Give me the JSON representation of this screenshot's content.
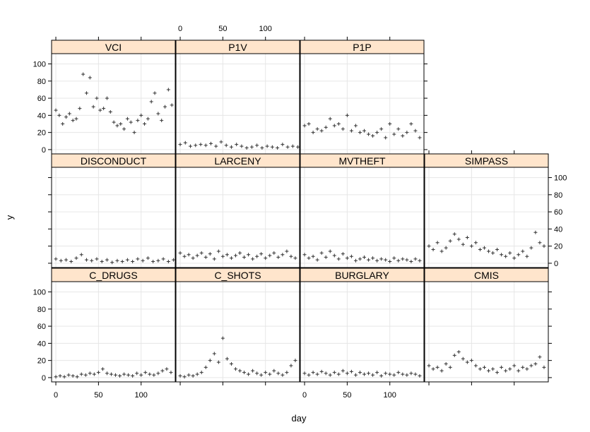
{
  "chart_data": {
    "type": "scatter",
    "layout": "lattice 4 columns x 3 rows",
    "xlabel": "day",
    "ylabel": "y",
    "xlim": [
      -5,
      140
    ],
    "ylim": [
      -5,
      112
    ],
    "x_ticks": [
      0,
      50,
      100
    ],
    "y_ticks": [
      0,
      20,
      40,
      60,
      80,
      100
    ],
    "colors": {
      "strip_fill": "#FFE5CC",
      "point": "#333333",
      "grid": "#E6E6E6",
      "border": "#000000"
    },
    "panels": [
      {
        "name": "VCI",
        "row": 1,
        "col": 1,
        "x": [
          0,
          4,
          8,
          12,
          16,
          20,
          24,
          28,
          32,
          36,
          40,
          44,
          48,
          52,
          56,
          60,
          64,
          68,
          72,
          76,
          80,
          84,
          88,
          92,
          96,
          100,
          104,
          108,
          112,
          116,
          120,
          124,
          128,
          132,
          136
        ],
        "y": [
          46,
          40,
          30,
          38,
          42,
          34,
          36,
          48,
          88,
          66,
          84,
          50,
          60,
          46,
          48,
          60,
          44,
          32,
          28,
          30,
          24,
          36,
          32,
          20,
          34,
          40,
          30,
          36,
          56,
          66,
          42,
          34,
          50,
          70,
          52
        ]
      },
      {
        "name": "P1V",
        "row": 1,
        "col": 2,
        "x": [
          0,
          6,
          12,
          18,
          24,
          30,
          36,
          42,
          48,
          54,
          60,
          66,
          72,
          78,
          84,
          90,
          96,
          102,
          108,
          114,
          120,
          126,
          132,
          138
        ],
        "y": [
          6,
          8,
          4,
          5,
          6,
          5,
          7,
          4,
          9,
          5,
          3,
          6,
          4,
          2,
          3,
          5,
          2,
          4,
          3,
          2,
          6,
          3,
          4,
          3
        ]
      },
      {
        "name": "P1P",
        "row": 1,
        "col": 3,
        "x": [
          0,
          5,
          10,
          15,
          20,
          25,
          30,
          35,
          40,
          45,
          50,
          55,
          60,
          65,
          70,
          75,
          80,
          85,
          90,
          95,
          100,
          105,
          110,
          115,
          120,
          125,
          130,
          135
        ],
        "y": [
          28,
          30,
          20,
          24,
          22,
          26,
          36,
          28,
          30,
          24,
          40,
          22,
          28,
          20,
          22,
          18,
          16,
          20,
          24,
          14,
          30,
          18,
          24,
          16,
          20,
          30,
          22,
          14
        ]
      },
      {
        "name": "DISCONDUCT",
        "row": 2,
        "col": 1,
        "x": [
          0,
          6,
          12,
          18,
          24,
          30,
          36,
          42,
          48,
          54,
          60,
          66,
          72,
          78,
          84,
          90,
          96,
          102,
          108,
          114,
          120,
          126,
          132,
          138
        ],
        "y": [
          5,
          3,
          4,
          2,
          6,
          10,
          4,
          3,
          5,
          2,
          4,
          1,
          3,
          2,
          4,
          2,
          5,
          3,
          6,
          2,
          3,
          5,
          2,
          4
        ]
      },
      {
        "name": "LARCENY",
        "row": 2,
        "col": 2,
        "x": [
          0,
          5,
          10,
          15,
          20,
          25,
          30,
          35,
          40,
          45,
          50,
          55,
          60,
          65,
          70,
          75,
          80,
          85,
          90,
          95,
          100,
          105,
          110,
          115,
          120,
          125,
          130,
          135
        ],
        "y": [
          12,
          8,
          10,
          6,
          9,
          12,
          7,
          11,
          5,
          14,
          8,
          10,
          6,
          9,
          12,
          7,
          10,
          5,
          8,
          11,
          6,
          9,
          12,
          7,
          10,
          14,
          8,
          6
        ]
      },
      {
        "name": "MVTHEFT",
        "row": 2,
        "col": 3,
        "x": [
          0,
          5,
          10,
          15,
          20,
          25,
          30,
          35,
          40,
          45,
          50,
          55,
          60,
          65,
          70,
          75,
          80,
          85,
          90,
          95,
          100,
          105,
          110,
          115,
          120,
          125,
          130,
          135
        ],
        "y": [
          10,
          6,
          8,
          4,
          12,
          7,
          14,
          9,
          5,
          11,
          6,
          8,
          3,
          5,
          7,
          4,
          6,
          3,
          5,
          4,
          2,
          6,
          3,
          5,
          4,
          2,
          5,
          3
        ]
      },
      {
        "name": "SIMPASS",
        "row": 2,
        "col": 4,
        "x": [
          0,
          5,
          10,
          15,
          20,
          25,
          30,
          35,
          40,
          45,
          50,
          55,
          60,
          65,
          70,
          75,
          80,
          85,
          90,
          95,
          100,
          105,
          110,
          115,
          120,
          125,
          130,
          135
        ],
        "y": [
          20,
          16,
          24,
          14,
          18,
          26,
          34,
          28,
          22,
          30,
          20,
          24,
          16,
          18,
          14,
          12,
          16,
          10,
          8,
          12,
          6,
          10,
          14,
          8,
          18,
          36,
          24,
          20
        ]
      },
      {
        "name": "C_DRUGS",
        "row": 3,
        "col": 1,
        "x": [
          0,
          5,
          10,
          15,
          20,
          25,
          30,
          35,
          40,
          45,
          50,
          55,
          60,
          65,
          70,
          75,
          80,
          85,
          90,
          95,
          100,
          105,
          110,
          115,
          120,
          125,
          130,
          135
        ],
        "y": [
          1,
          2,
          1,
          3,
          2,
          1,
          4,
          3,
          5,
          4,
          6,
          10,
          5,
          4,
          3,
          2,
          4,
          3,
          2,
          5,
          3,
          6,
          4,
          3,
          5,
          8,
          10,
          6
        ]
      },
      {
        "name": "C_SHOTS",
        "row": 3,
        "col": 2,
        "x": [
          0,
          5,
          10,
          15,
          20,
          25,
          30,
          35,
          40,
          45,
          50,
          55,
          60,
          65,
          70,
          75,
          80,
          85,
          90,
          95,
          100,
          105,
          110,
          115,
          120,
          125,
          130,
          135
        ],
        "y": [
          2,
          1,
          3,
          2,
          4,
          6,
          12,
          20,
          28,
          18,
          46,
          22,
          16,
          10,
          8,
          6,
          4,
          8,
          5,
          3,
          6,
          4,
          8,
          5,
          3,
          6,
          14,
          20
        ]
      },
      {
        "name": "BURGLARY",
        "row": 3,
        "col": 3,
        "x": [
          0,
          5,
          10,
          15,
          20,
          25,
          30,
          35,
          40,
          45,
          50,
          55,
          60,
          65,
          70,
          75,
          80,
          85,
          90,
          95,
          100,
          105,
          110,
          115,
          120,
          125,
          130,
          135
        ],
        "y": [
          5,
          3,
          6,
          4,
          7,
          5,
          3,
          6,
          4,
          8,
          5,
          7,
          3,
          6,
          4,
          5,
          3,
          6,
          2,
          5,
          4,
          3,
          6,
          4,
          3,
          5,
          4,
          2
        ]
      },
      {
        "name": "CMIS",
        "row": 3,
        "col": 4,
        "x": [
          0,
          5,
          10,
          15,
          20,
          25,
          30,
          35,
          40,
          45,
          50,
          55,
          60,
          65,
          70,
          75,
          80,
          85,
          90,
          95,
          100,
          105,
          110,
          115,
          120,
          125,
          130,
          135
        ],
        "y": [
          14,
          10,
          12,
          8,
          16,
          12,
          26,
          30,
          22,
          18,
          20,
          14,
          10,
          12,
          8,
          10,
          6,
          12,
          8,
          10,
          14,
          8,
          12,
          10,
          14,
          16,
          24,
          12
        ]
      }
    ]
  }
}
